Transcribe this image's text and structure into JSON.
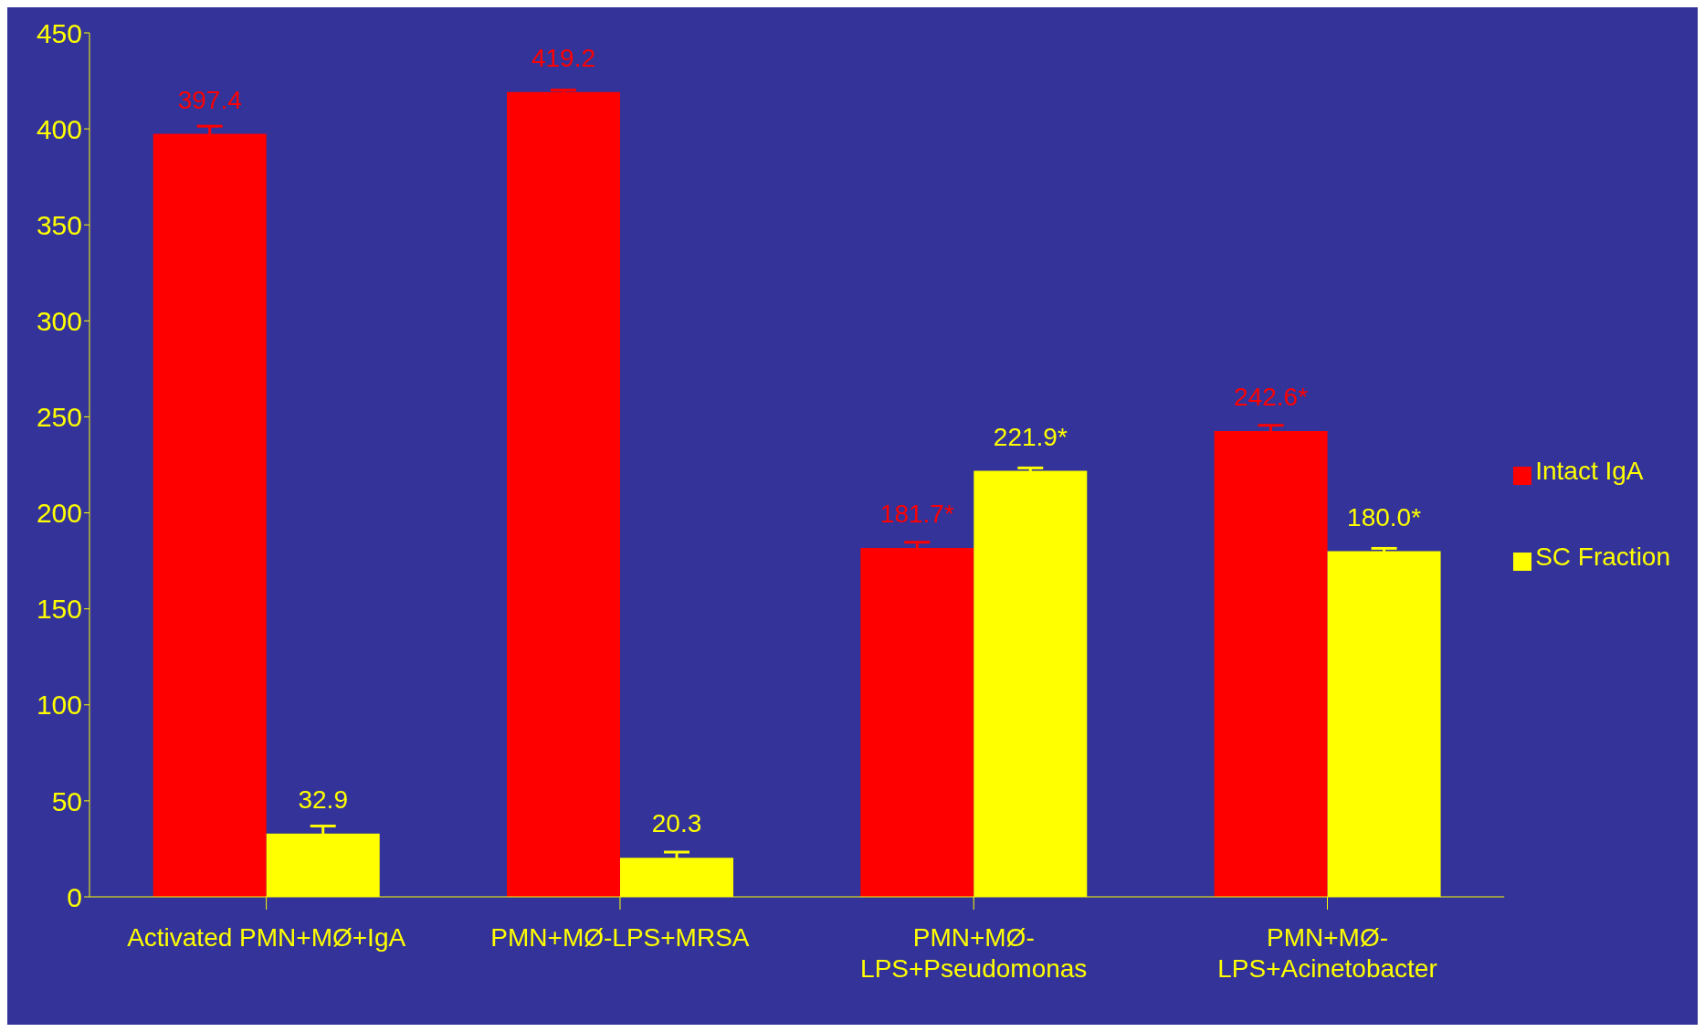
{
  "chart_data": {
    "type": "bar",
    "categories": [
      "Activated PMN+MØ+IgA",
      "PMN+MØ-LPS+MRSA",
      "PMN+MØ-LPS+Pseudomonas",
      "PMN+MØ-LPS+Acinetobacter"
    ],
    "series": [
      {
        "name": "Intact IgA",
        "color": "#ff0000",
        "values": [
          397.4,
          419.2,
          181.7,
          242.6
        ],
        "errors": [
          4,
          1,
          3,
          3
        ],
        "value_labels": [
          "397.4",
          "419.2",
          "181.7*",
          "242.6*"
        ]
      },
      {
        "name": "SC Fraction",
        "color": "#ffff00",
        "values": [
          32.9,
          20.3,
          221.9,
          180.0
        ],
        "errors": [
          4,
          3,
          1.5,
          1.5
        ],
        "value_labels": [
          "32.9",
          "20.3",
          "221.9*",
          "180.0*"
        ]
      }
    ],
    "ylim": [
      0,
      450
    ],
    "yticks": [
      0,
      50,
      100,
      150,
      200,
      250,
      300,
      350,
      400,
      450
    ],
    "legend": "right"
  }
}
